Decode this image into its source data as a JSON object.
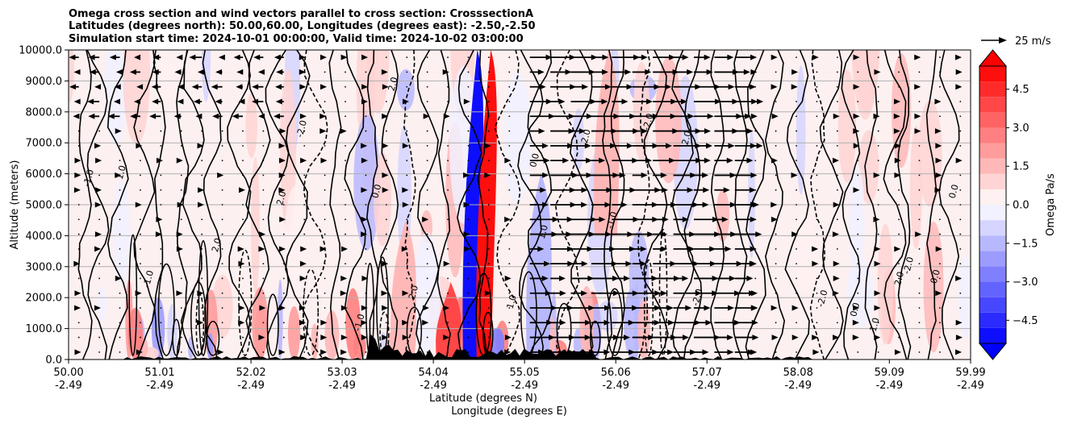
{
  "chart_data": {
    "type": "heatmap",
    "title_lines": [
      "Omega cross section and wind vectors parallel to cross section: CrosssectionA",
      "Latitudes (degrees north): 50.00,60.00, Longitudes (degrees east): -2.50,-2.50",
      "Simulation start time: 2024-10-01 00:00:00, Valid time: 2024-10-02 03:00:00"
    ],
    "ylabel": "Altitude (meters)",
    "xlabel_lat": "Latitude (degrees N)",
    "xlabel_lon": "Longitude (degrees E)",
    "ylim": [
      0,
      10000
    ],
    "y_ticks": [
      0,
      1000,
      2000,
      3000,
      4000,
      5000,
      6000,
      7000,
      8000,
      9000,
      10000
    ],
    "y_tick_labels": [
      "0.0",
      "1000.0",
      "2000.0",
      "3000.0",
      "4000.0",
      "5000.0",
      "6000.0",
      "7000.0",
      "8000.0",
      "9000.0",
      "10000.0"
    ],
    "xlim": [
      50.0,
      59.99
    ],
    "x_ticks": [
      50.0,
      51.01,
      52.02,
      53.03,
      54.04,
      55.05,
      56.06,
      57.07,
      58.08,
      59.09,
      59.99
    ],
    "x_tick_lat_labels": [
      "50.00",
      "51.01",
      "52.02",
      "53.03",
      "54.04",
      "55.05",
      "56.06",
      "57.07",
      "58.08",
      "59.09",
      "59.99"
    ],
    "x_tick_lon_labels": [
      "-2.49",
      "-2.49",
      "-2.49",
      "-2.49",
      "-2.49",
      "-2.49",
      "-2.49",
      "-2.49",
      "-2.49",
      "-2.49",
      "-2.49"
    ],
    "colorbar": {
      "label": "Omega Pa/s",
      "range": [
        -5.4,
        5.4
      ],
      "ticks": [
        4.5,
        3.0,
        1.5,
        0.0,
        -1.5,
        -3.0,
        -4.5
      ],
      "tick_labels": [
        "4.5",
        "3.0",
        "1.5",
        "0.0",
        "−1.5",
        "−3.0",
        "−4.5"
      ],
      "levels": 18
    },
    "quiver_key": {
      "label": "25 m/s",
      "speed": 25
    },
    "contour_labels": [
      "0.0",
      "1.0",
      "-1.0",
      "2.0",
      "-2.0"
    ],
    "omega_features": [
      {
        "name": "strong-ascent-core",
        "lat": 54.45,
        "alt_min": 0,
        "alt_max": 10000,
        "omega": -5.4
      },
      {
        "name": "strong-descent-core",
        "lat": 54.6,
        "alt_min": 0,
        "alt_max": 10000,
        "omega": 5.4
      },
      {
        "name": "descent-band",
        "lat": 54.2,
        "alt_min": 0,
        "alt_max": 2500,
        "omega": 4.0
      },
      {
        "name": "weak-ascent",
        "lat": 55.2,
        "alt_min": 0,
        "alt_max": 6000,
        "omega": -1.8
      },
      {
        "name": "weak-descent",
        "lat": 53.7,
        "alt_min": 0,
        "alt_max": 4500,
        "omega": 1.5
      },
      {
        "name": "weak-descent",
        "lat": 55.95,
        "alt_min": 4000,
        "alt_max": 10000,
        "omega": 1.2
      }
    ],
    "wind": {
      "description": "Wind vectors parallel to cross section; strong southerly-to-northerly flow between 55.1 and 57.6 degrees N, weak elsewhere",
      "strong_band": [
        55.1,
        57.6
      ],
      "max_speed": 25
    }
  }
}
